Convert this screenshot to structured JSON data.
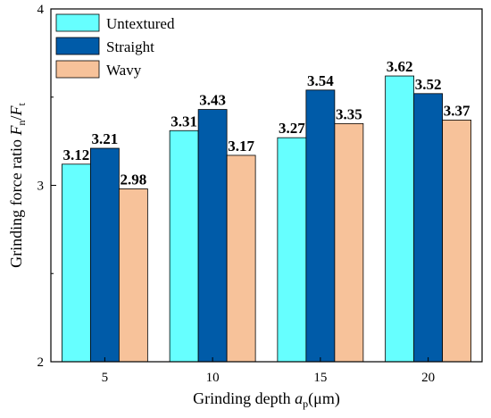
{
  "chart_data": {
    "type": "bar",
    "categories": [
      "5",
      "10",
      "15",
      "20"
    ],
    "series": [
      {
        "name": "Untextured",
        "values": [
          3.12,
          3.31,
          3.27,
          3.62
        ],
        "labels": [
          "3.12",
          "3.31",
          "3.27",
          "3.62"
        ],
        "color": "#66FFFF"
      },
      {
        "name": "Straight",
        "values": [
          3.21,
          3.43,
          3.54,
          3.52
        ],
        "labels": [
          "3.21",
          "3.43",
          "3.54",
          "3.52"
        ],
        "color": "#005BA8"
      },
      {
        "name": "Wavy",
        "values": [
          2.98,
          3.17,
          3.35,
          3.37
        ],
        "labels": [
          "2.98",
          "3.17",
          "3.35",
          "3.37"
        ],
        "color": "#F7C29A"
      }
    ],
    "xlabel_main": "Grinding depth ",
    "xlabel_var": "a",
    "xlabel_sub": "p",
    "xlabel_unit": "(μm)",
    "ylabel_main": "Grinding force ratio ",
    "ylabel_var1": "F",
    "ylabel_sub1": "n",
    "ylabel_sep": "/",
    "ylabel_var2": "F",
    "ylabel_sub2": "t",
    "ylim": [
      2,
      4
    ],
    "yticks": [
      "2",
      "3",
      "4"
    ],
    "legend_position": "top-left",
    "grid": false
  }
}
